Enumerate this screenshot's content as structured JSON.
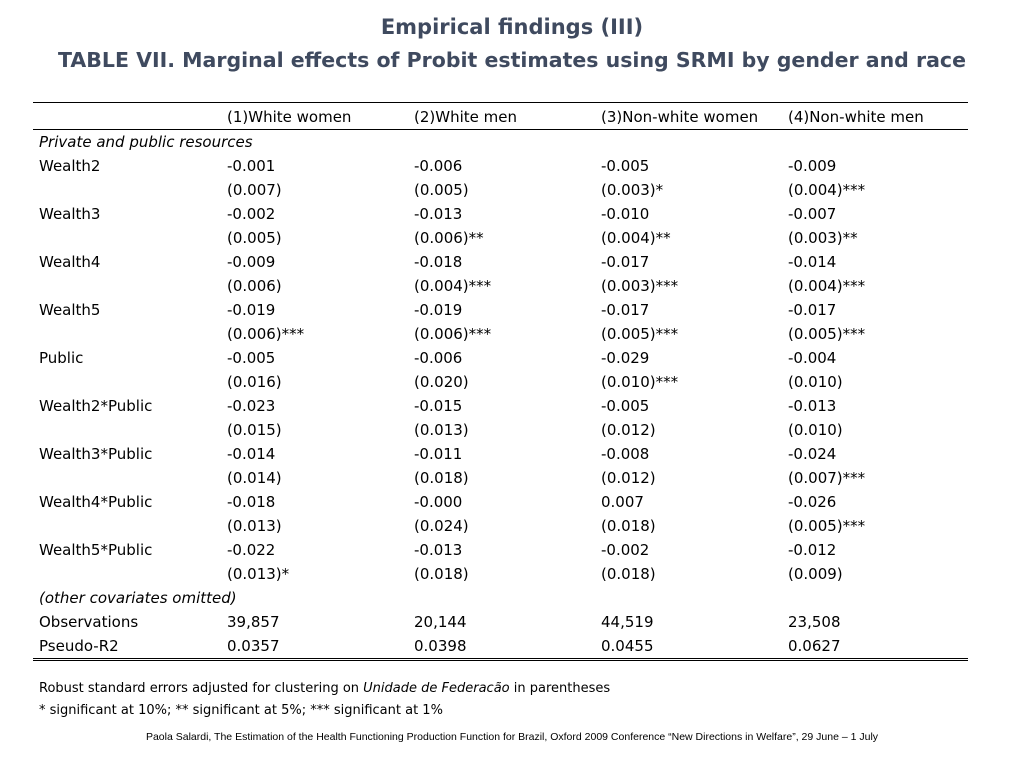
{
  "title": {
    "line1": "Empirical findings (III)",
    "line2": "TABLE VII. Marginal effects of Probit estimates using SRMI by gender and race"
  },
  "table": {
    "headers": [
      "",
      "(1)White women",
      "(2)White men",
      "(3)Non-white women",
      "(4)Non-white men"
    ],
    "rows": [
      {
        "type": "section",
        "label": "Private and public resources"
      },
      {
        "type": "coef",
        "label": "Wealth2",
        "values": [
          "-0.001",
          "-0.006",
          "-0.005",
          "-0.009"
        ]
      },
      {
        "type": "se",
        "label": "",
        "values": [
          "(0.007)",
          "(0.005)",
          "(0.003)*",
          "(0.004)***"
        ]
      },
      {
        "type": "coef",
        "label": "Wealth3",
        "values": [
          "-0.002",
          "-0.013",
          "-0.010",
          "-0.007"
        ]
      },
      {
        "type": "se",
        "label": "",
        "values": [
          "(0.005)",
          "(0.006)**",
          "(0.004)**",
          "(0.003)**"
        ]
      },
      {
        "type": "coef",
        "label": "Wealth4",
        "values": [
          "-0.009",
          "-0.018",
          "-0.017",
          "-0.014"
        ]
      },
      {
        "type": "se",
        "label": "",
        "values": [
          "(0.006)",
          "(0.004)***",
          "(0.003)***",
          "(0.004)***"
        ]
      },
      {
        "type": "coef",
        "label": "Wealth5",
        "values": [
          "-0.019",
          "-0.019",
          "-0.017",
          "-0.017"
        ]
      },
      {
        "type": "se",
        "label": "",
        "values": [
          "(0.006)***",
          "(0.006)***",
          "(0.005)***",
          "(0.005)***"
        ]
      },
      {
        "type": "coef",
        "label": "Public",
        "values": [
          "-0.005",
          "-0.006",
          "-0.029",
          "-0.004"
        ]
      },
      {
        "type": "se",
        "label": "",
        "values": [
          "(0.016)",
          "(0.020)",
          "(0.010)***",
          "(0.010)"
        ]
      },
      {
        "type": "coef",
        "label": "Wealth2*Public",
        "values": [
          "-0.023",
          "-0.015",
          "-0.005",
          "-0.013"
        ]
      },
      {
        "type": "se",
        "label": "",
        "values": [
          "(0.015)",
          "(0.013)",
          "(0.012)",
          "(0.010)"
        ]
      },
      {
        "type": "coef",
        "label": "Wealth3*Public",
        "values": [
          "-0.014",
          "-0.011",
          "-0.008",
          "-0.024"
        ]
      },
      {
        "type": "se",
        "label": "",
        "values": [
          "(0.014)",
          "(0.018)",
          "(0.012)",
          "(0.007)***"
        ]
      },
      {
        "type": "coef",
        "label": "Wealth4*Public",
        "values": [
          "-0.018",
          "-0.000",
          "0.007",
          "-0.026"
        ]
      },
      {
        "type": "se",
        "label": "",
        "values": [
          "(0.013)",
          "(0.024)",
          "(0.018)",
          "(0.005)***"
        ]
      },
      {
        "type": "coef",
        "label": "Wealth5*Public",
        "values": [
          "-0.022",
          "-0.013",
          "-0.002",
          "-0.012"
        ]
      },
      {
        "type": "se",
        "label": "",
        "values": [
          "(0.013)*",
          "(0.018)",
          "(0.018)",
          "(0.009)"
        ]
      },
      {
        "type": "section",
        "label": "(other covariates omitted)"
      },
      {
        "type": "stat",
        "label": "Observations",
        "values": [
          "39,857",
          "20,144",
          "44,519",
          "23,508"
        ]
      },
      {
        "type": "stat",
        "label": "Pseudo-R2",
        "values": [
          "0.0357",
          "0.0398",
          "0.0455",
          "0.0627"
        ]
      }
    ]
  },
  "notes": {
    "line1_pre": "Robust standard errors adjusted for clustering on ",
    "line1_em": "Unidade de Federacão",
    "line1_post": " in parentheses",
    "line2": "* significant at 10%; ** significant at 5%; *** significant at 1%"
  },
  "footer": "Paola Salardi, The Estimation of the Health Functioning Production Function for Brazil, Oxford 2009 Conference “New Directions in Welfare”, 29 June – 1 July",
  "colors": {
    "title": "#3F4A5F",
    "text": "#000000",
    "background": "#FFFFFF"
  }
}
